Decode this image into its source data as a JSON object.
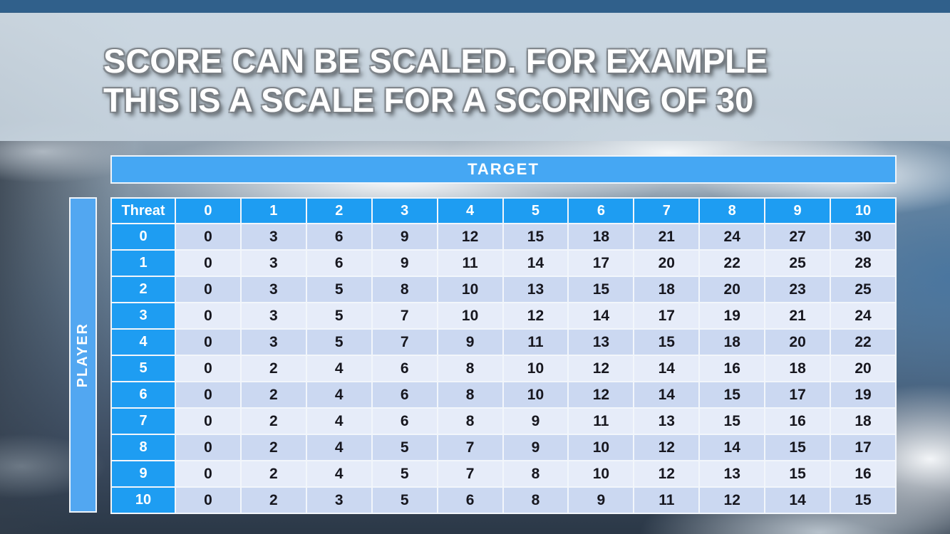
{
  "title": {
    "line1": "SCORE CAN BE SCALED. FOR EXAMPLE",
    "line2": "THIS IS A SCALE FOR A SCORING OF 30"
  },
  "table": {
    "target_label": "TARGET",
    "player_label": "PLAYER",
    "corner_label": "Threat",
    "column_headers": [
      "0",
      "1",
      "2",
      "3",
      "4",
      "5",
      "6",
      "7",
      "8",
      "9",
      "10"
    ],
    "row_headers": [
      "0",
      "1",
      "2",
      "3",
      "4",
      "5",
      "6",
      "7",
      "8",
      "9",
      "10"
    ],
    "rows": [
      [
        0,
        3,
        6,
        9,
        12,
        15,
        18,
        21,
        24,
        27,
        30
      ],
      [
        0,
        3,
        6,
        9,
        11,
        14,
        17,
        20,
        22,
        25,
        28
      ],
      [
        0,
        3,
        5,
        8,
        10,
        13,
        15,
        18,
        20,
        23,
        25
      ],
      [
        0,
        3,
        5,
        7,
        10,
        12,
        14,
        17,
        19,
        21,
        24
      ],
      [
        0,
        3,
        5,
        7,
        9,
        11,
        13,
        15,
        18,
        20,
        22
      ],
      [
        0,
        2,
        4,
        6,
        8,
        10,
        12,
        14,
        16,
        18,
        20
      ],
      [
        0,
        2,
        4,
        6,
        8,
        10,
        12,
        14,
        15,
        17,
        19
      ],
      [
        0,
        2,
        4,
        6,
        8,
        9,
        11,
        13,
        15,
        16,
        18
      ],
      [
        0,
        2,
        4,
        5,
        7,
        9,
        10,
        12,
        14,
        15,
        17
      ],
      [
        0,
        2,
        4,
        5,
        7,
        8,
        10,
        12,
        13,
        15,
        16
      ],
      [
        0,
        2,
        3,
        5,
        6,
        8,
        9,
        11,
        12,
        14,
        15
      ]
    ]
  },
  "colors": {
    "header_blue": "#1e9df2",
    "target_blue": "#45a7f3",
    "player_blue": "#52a7f1",
    "row_shade_dark": "#cbd8f1",
    "row_shade_light": "#e6ecf9",
    "cell_text": "#17171f",
    "title_color": "#ffffff"
  }
}
